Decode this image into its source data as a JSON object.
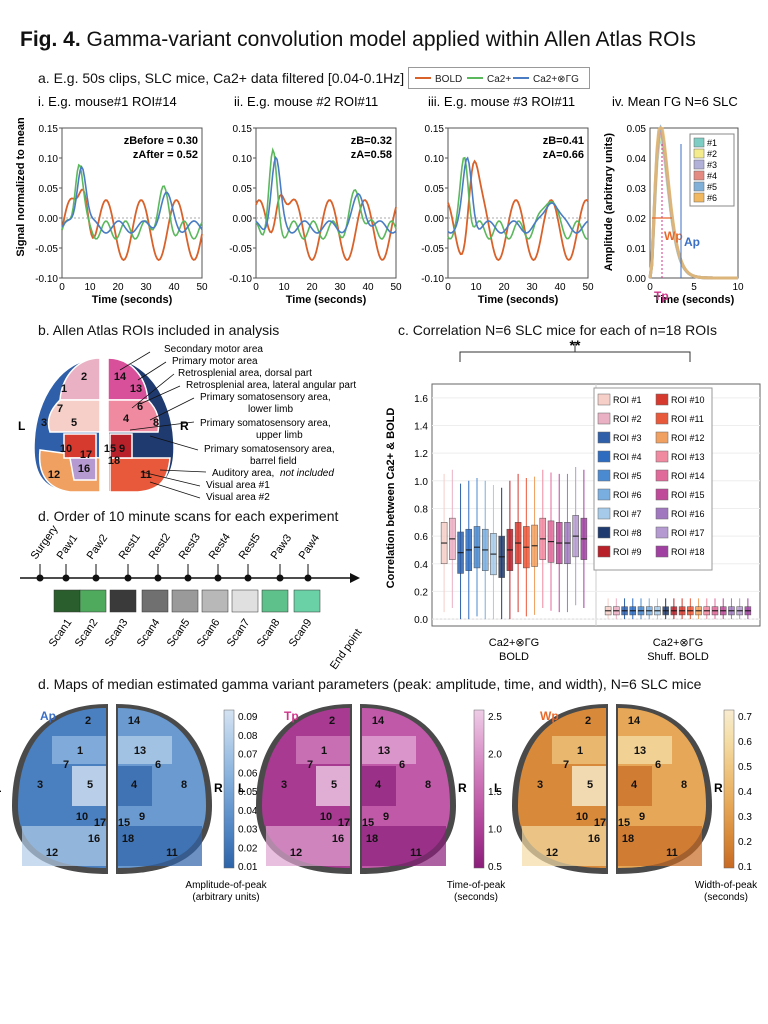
{
  "figure": {
    "number": "Fig. 4.",
    "title": "Gamma-variant convolution model applied within Allen Atlas ROIs"
  },
  "panel_a": {
    "heading": "a. E.g. 50s clips, SLC mice, Ca2+ data filtered [0.04-0.1Hz]",
    "legend": [
      {
        "label": "BOLD",
        "color": "#d9622b"
      },
      {
        "label": "Ca2+",
        "color": "#5cb85c"
      },
      {
        "label": "Ca2+⊗ΓG",
        "color": "#4a7cc4"
      }
    ],
    "subpanels": [
      {
        "id": "i",
        "title": "i. E.g. mouse#1 ROI#14",
        "z1": "zBefore = 0.30",
        "z2": "zAfter = 0.52"
      },
      {
        "id": "ii",
        "title": "ii. E.g. mouse #2 ROI#11",
        "z1": "zB=0.32",
        "z2": "zA=0.58"
      },
      {
        "id": "iii",
        "title": "iii. E.g. mouse #3 ROI#11",
        "z1": "zB=0.41",
        "z2": "zA=0.66"
      },
      {
        "id": "iv",
        "title": "iv. Mean ΓG N=6 SLC"
      }
    ],
    "ylabel": "Signal normalized to mean",
    "xlabel": "Time (seconds)",
    "yticks": [
      "0.15",
      "0.10",
      "0.05",
      "0.00",
      "-0.05",
      "-0.10"
    ],
    "xticks": [
      "0",
      "10",
      "20",
      "30",
      "40",
      "50"
    ],
    "iv_ylabel": "Amplitude (arbitrary units)",
    "iv_yticks": [
      "0.05",
      "0.04",
      "0.03",
      "0.02",
      "0.01",
      "0.00"
    ],
    "iv_xticks": [
      "0",
      "5",
      "10"
    ],
    "iv_labels": {
      "wp": "Wp",
      "ap": "Ap",
      "tp": "Tp"
    },
    "iv_legend": [
      {
        "label": "#1",
        "color": "#7ecdc4"
      },
      {
        "label": "#2",
        "color": "#f4ec8c"
      },
      {
        "label": "#3",
        "color": "#b0b0d8"
      },
      {
        "label": "#4",
        "color": "#e58a80"
      },
      {
        "label": "#5",
        "color": "#80b0d8"
      },
      {
        "label": "#6",
        "color": "#f2b860"
      }
    ]
  },
  "panel_b": {
    "heading": "b. Allen Atlas ROIs included in analysis",
    "side_l": "L",
    "side_r": "R",
    "roi_labels": [
      "Secondary motor area",
      "Primary motor area",
      "Retrosplenial area, dorsal part",
      "Retrosplenial area, lateral angular part",
      "Primary somatosensory area,",
      "lower limb",
      "Primary somatosensory area,",
      "upper limb",
      "Primary somatosensory area,",
      "barrel field",
      "Auditory area,",
      "not included",
      "Visual area #1",
      "Visual area #2"
    ]
  },
  "panel_c": {
    "heading": "c. Correlation N=6 SLC mice for each of n=18 ROIs",
    "significance": "**",
    "ylabel": "Correlation between Ca2+ & BOLD",
    "yticks": [
      "1.6",
      "1.4",
      "1.2",
      "1.0",
      "0.8",
      "0.6",
      "0.4",
      "0.2",
      "0.0"
    ],
    "group1_line1": "Ca2+⊗ΓG",
    "group1_line2": "BOLD",
    "group2_line1": "Ca2+⊗ΓG",
    "group2_line2": "Shuff. BOLD",
    "legend": [
      {
        "label": "ROI #1",
        "color": "#f5cfc8"
      },
      {
        "label": "ROI #2",
        "color": "#eab0c4"
      },
      {
        "label": "ROI #3",
        "color": "#2f5fa8"
      },
      {
        "label": "ROI #4",
        "color": "#2e6cc0"
      },
      {
        "label": "ROI #5",
        "color": "#4a8ad0"
      },
      {
        "label": "ROI #6",
        "color": "#78aee0"
      },
      {
        "label": "ROI #7",
        "color": "#a6cbea"
      },
      {
        "label": "ROI #8",
        "color": "#1f3a6e"
      },
      {
        "label": "ROI #9",
        "color": "#b8202a"
      },
      {
        "label": "ROI #10",
        "color": "#d63a2e"
      },
      {
        "label": "ROI #11",
        "color": "#e8583a"
      },
      {
        "label": "ROI #12",
        "color": "#f0a060"
      },
      {
        "label": "ROI #13",
        "color": "#f08aa0"
      },
      {
        "label": "ROI #14",
        "color": "#e06a9a"
      },
      {
        "label": "ROI #15",
        "color": "#c04a9a"
      },
      {
        "label": "ROI #16",
        "color": "#a078c0"
      },
      {
        "label": "ROI #17",
        "color": "#b49ad0"
      },
      {
        "label": "ROI #18",
        "color": "#a040a0"
      }
    ]
  },
  "chart_data": {
    "type": "box",
    "title": "Correlation N=6 SLC mice for each of n=18 ROIs",
    "ylabel": "Correlation between Ca2+ & BOLD",
    "ylim": [
      -0.05,
      1.7
    ],
    "groups": [
      "Ca2+⊗ΓG BOLD",
      "Ca2+⊗ΓG Shuff. BOLD"
    ],
    "categories": [
      "ROI #1",
      "ROI #2",
      "ROI #3",
      "ROI #4",
      "ROI #5",
      "ROI #6",
      "ROI #7",
      "ROI #8",
      "ROI #9",
      "ROI #10",
      "ROI #11",
      "ROI #12",
      "ROI #13",
      "ROI #14",
      "ROI #15",
      "ROI #16",
      "ROI #17",
      "ROI #18"
    ],
    "median_bold": [
      0.55,
      0.58,
      0.48,
      0.5,
      0.52,
      0.5,
      0.47,
      0.45,
      0.5,
      0.55,
      0.52,
      0.53,
      0.58,
      0.56,
      0.55,
      0.55,
      0.6,
      0.58
    ],
    "median_shuffled": [
      0.06,
      0.06,
      0.06,
      0.06,
      0.06,
      0.06,
      0.06,
      0.06,
      0.06,
      0.06,
      0.06,
      0.06,
      0.06,
      0.06,
      0.06,
      0.06,
      0.06,
      0.06
    ]
  },
  "panel_d_scans": {
    "heading": "d. Order of 10 minute scans for each experiment",
    "events": [
      "Surgery",
      "Paw1",
      "Paw2",
      "Rest1",
      "Rest2",
      "Rest3",
      "Rest4",
      "Rest5",
      "Paw3",
      "Paw4"
    ],
    "scans": [
      {
        "label": "Scan1",
        "color": "#2a5e2c"
      },
      {
        "label": "Scan2",
        "color": "#4faa5e"
      },
      {
        "label": "Scan3",
        "color": "#3a3a3a"
      },
      {
        "label": "Scan4",
        "color": "#707070"
      },
      {
        "label": "Scan5",
        "color": "#9a9a9a"
      },
      {
        "label": "Scan6",
        "color": "#b8b8b8"
      },
      {
        "label": "Scan7",
        "color": "#e0e0e0"
      },
      {
        "label": "Scan8",
        "color": "#5ec08a"
      },
      {
        "label": "Scan9",
        "color": "#6ad0a6"
      }
    ],
    "end_label": "End point"
  },
  "panel_d_maps": {
    "heading": "d. Maps of median estimated gamma variant parameters (peak: amplitude, time, and width), N=6 SLC mice",
    "maps": [
      {
        "id": "ap",
        "tag": "Ap",
        "tag_color": "#3b6fc4",
        "cb_label1": "Amplitude-of-peak",
        "cb_label2": "(arbitrary units)",
        "ticks": [
          "0.09",
          "0.08",
          "0.07",
          "0.06",
          "0.05",
          "0.04",
          "0.03",
          "0.02",
          "0.01"
        ]
      },
      {
        "id": "tp",
        "tag": "Tp",
        "tag_color": "#d0338a",
        "cb_label1": "Time-of-peak",
        "cb_label2": "(seconds)",
        "ticks": [
          "2.5",
          "2.0",
          "1.5",
          "1.0",
          "0.5"
        ]
      },
      {
        "id": "wp",
        "tag": "Wp",
        "tag_color": "#e8682a",
        "cb_label1": "Width-of-peak",
        "cb_label2": "(seconds)",
        "ticks": [
          "0.7",
          "0.6",
          "0.5",
          "0.4",
          "0.3",
          "0.2",
          "0.1"
        ]
      }
    ],
    "side_l": "L",
    "side_r": "R",
    "roi_numbers": [
      "1",
      "2",
      "3",
      "4",
      "5",
      "6",
      "7",
      "8",
      "9",
      "10",
      "11",
      "12",
      "13",
      "14",
      "15",
      "16",
      "17",
      "18"
    ]
  }
}
